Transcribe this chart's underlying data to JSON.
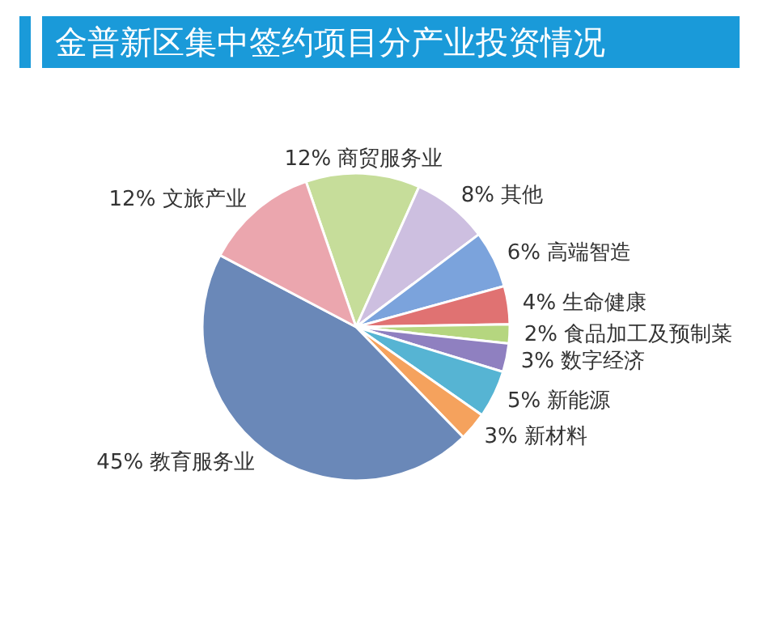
{
  "chart_data": {
    "type": "pie",
    "title": "金普新区集中签约项目分产业投资情况",
    "categories": [
      "商贸服务业",
      "其他",
      "高端智造",
      "生命健康",
      "食品加工及预制菜",
      "数字经济",
      "新能源",
      "新材料",
      "教育服务业",
      "文旅产业"
    ],
    "values": [
      12,
      8,
      6,
      4,
      2,
      3,
      5,
      3,
      45,
      12
    ],
    "value_labels": [
      "12%",
      "8%",
      "6%",
      "4%",
      "2%",
      "3%",
      "5%",
      "3%",
      "45%",
      "12%"
    ],
    "colors": [
      "#c6dd9a",
      "#cdbfe0",
      "#7ba3dc",
      "#e07272",
      "#b5d67f",
      "#8f80c0",
      "#56b4d3",
      "#f5a25d",
      "#6a88b8",
      "#eba6ae"
    ]
  }
}
